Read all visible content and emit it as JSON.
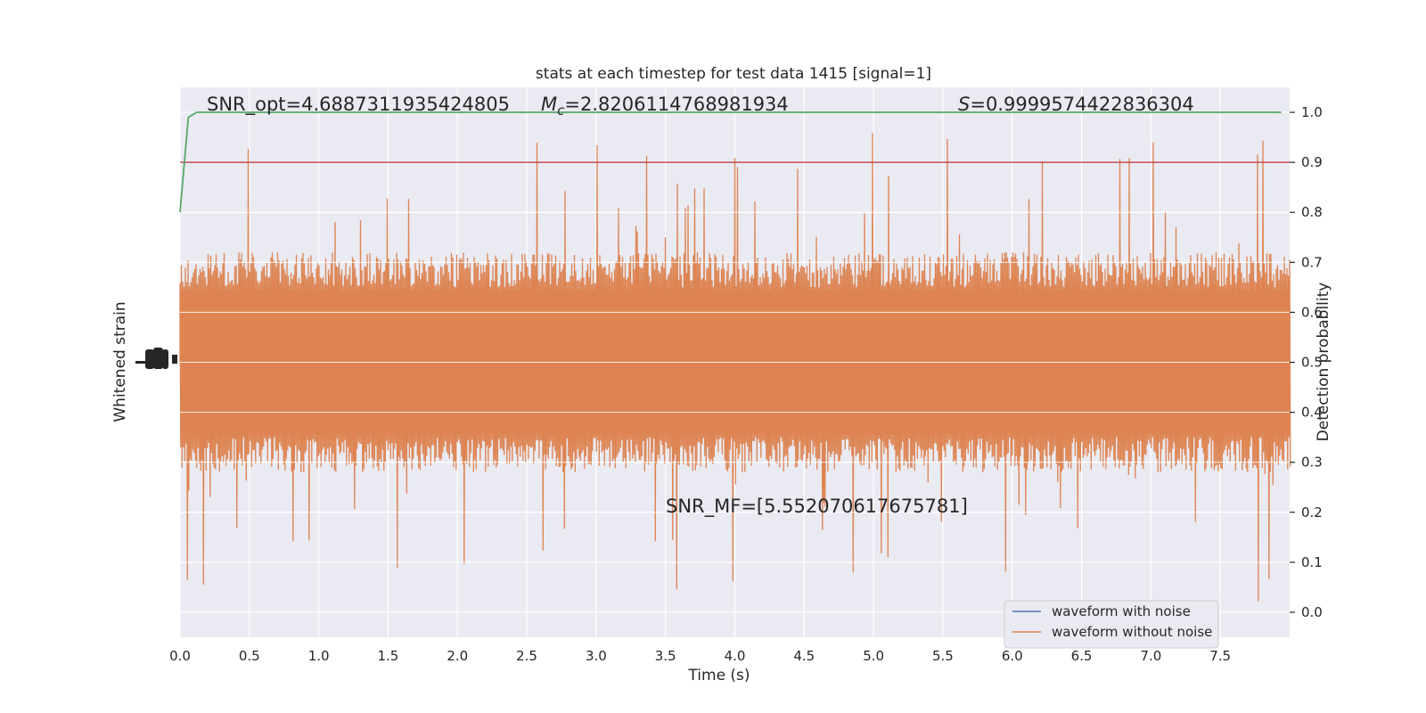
{
  "chart_data": {
    "type": "line",
    "title": "stats at each timestep for test data 1415 [signal=1]",
    "xlabel": "Time (s)",
    "ylabel_left": "Whitened strain",
    "ylabel_right": "Detection probability",
    "xlim": [
      0.0,
      8.0
    ],
    "ylim_right": [
      -0.05,
      1.05
    ],
    "x_ticks": [
      "0.0",
      "0.5",
      "1.0",
      "1.5",
      "2.0",
      "2.5",
      "3.0",
      "3.5",
      "4.0",
      "4.5",
      "5.0",
      "5.5",
      "6.0",
      "6.5",
      "7.0",
      "7.5"
    ],
    "x_tick_values": [
      0.0,
      0.5,
      1.0,
      1.5,
      2.0,
      2.5,
      3.0,
      3.5,
      4.0,
      4.5,
      5.0,
      5.5,
      6.0,
      6.5,
      7.0,
      7.5
    ],
    "y_right_ticks": [
      "0.0",
      "0.1",
      "0.2",
      "0.3",
      "0.4",
      "0.5",
      "0.6",
      "0.7",
      "0.8",
      "0.9",
      "1.0"
    ],
    "y_right_tick_values": [
      0.0,
      0.1,
      0.2,
      0.3,
      0.4,
      0.5,
      0.6,
      0.7,
      0.8,
      0.9,
      1.0
    ],
    "grid": true,
    "legend_position": "lower-right",
    "colors": {
      "with_noise": "#4c72b0",
      "without_noise": "#dd8452",
      "probability": "#55a868",
      "threshold": "#c44e52",
      "background": "#eaeaf2",
      "grid": "#ffffff"
    },
    "series": [
      {
        "name": "waveform with noise",
        "color": "#4c72b0"
      },
      {
        "name": "waveform without noise",
        "color": "#dd8452"
      }
    ],
    "probability_curve": {
      "x": [
        0.0,
        0.06,
        0.12,
        0.5,
        1.0,
        2.0,
        3.0,
        4.0,
        5.0,
        6.0,
        7.0,
        7.94
      ],
      "y": [
        0.8,
        0.99,
        1.0,
        1.0,
        1.0,
        1.0,
        1.0,
        1.0,
        1.0,
        1.0,
        1.0,
        1.0
      ]
    },
    "threshold": 0.9,
    "annotations": {
      "snr_opt": "SNR_opt=4.6887311935424805",
      "mc_prefix": "M",
      "mc_sub": "c",
      "mc_value": "=2.8206114768981934",
      "s_prefix": "S",
      "s_value": "=0.9999574422836304",
      "snr_mf": "SNR_MF=[5.552070617675781]"
    },
    "strain_band": {
      "center": 0.5,
      "half_width_core": 0.2,
      "spike_max": 0.5
    }
  }
}
